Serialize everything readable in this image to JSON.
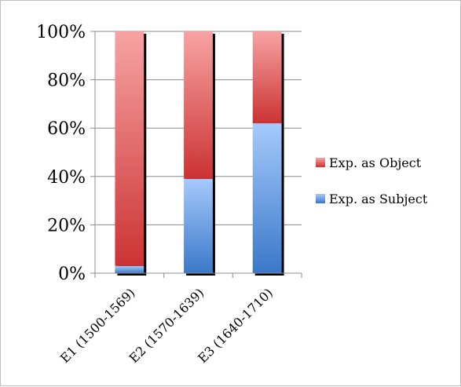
{
  "chart_data": {
    "type": "bar",
    "stacked": true,
    "normalized": true,
    "categories": [
      "E1 (1500-1569)",
      "E2 (1570-1639)",
      "E3 (1640-1710)"
    ],
    "series": [
      {
        "name": "Exp. as Subject",
        "values": [
          3,
          39,
          62
        ],
        "color": "#4f81bd"
      },
      {
        "name": "Exp. as Object",
        "values": [
          97,
          61,
          38
        ],
        "color": "#c0504d"
      }
    ],
    "ylim": [
      0,
      100
    ],
    "yticks": [
      "0%",
      "20%",
      "40%",
      "60%",
      "80%",
      "100%"
    ],
    "grid": true,
    "legend": "right"
  }
}
